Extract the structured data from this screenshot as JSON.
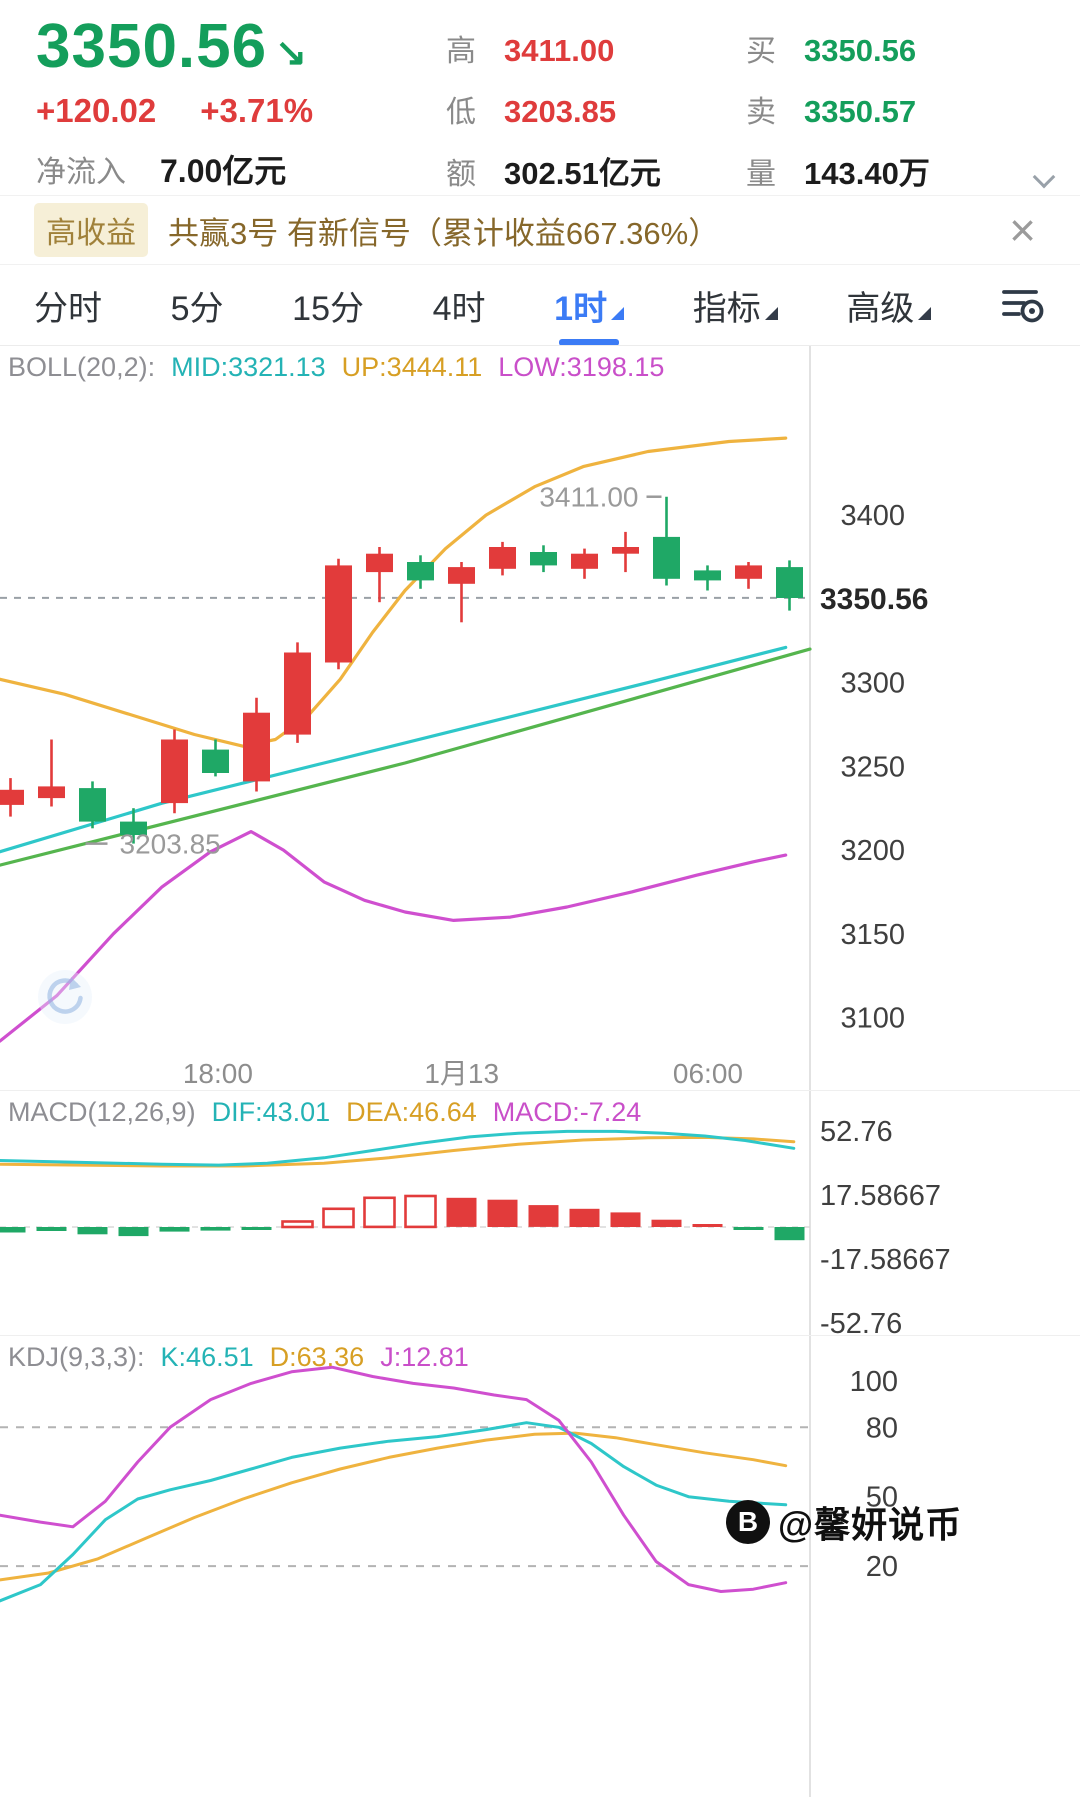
{
  "header": {
    "price": "3350.56",
    "price_arrow": "↘",
    "change": "+120.02",
    "change_pct": "+3.71%",
    "net_inflow_label": "净流入",
    "net_inflow_value": "7.00亿元",
    "stats": [
      {
        "label": "高",
        "value": "3411.00"
      },
      {
        "label": "低",
        "value": "3203.85"
      },
      {
        "label": "额",
        "value": "302.51亿元"
      },
      {
        "label": "买",
        "value": "3350.56"
      },
      {
        "label": "卖",
        "value": "3350.57"
      },
      {
        "label": "量",
        "value": "143.40万"
      }
    ]
  },
  "banner": {
    "badge": "高收益",
    "text": "共赢3号 有新信号（累计收益667.36%）",
    "close_icon": "×"
  },
  "tabs": {
    "items": [
      {
        "label": "分时"
      },
      {
        "label": "5分"
      },
      {
        "label": "15分"
      },
      {
        "label": "4时"
      },
      {
        "label": "1时",
        "active": true
      },
      {
        "label": "指标"
      },
      {
        "label": "高级"
      }
    ]
  },
  "watermark": {
    "logo": "B",
    "text": "@馨妍说币"
  },
  "chart_data": {
    "colors": {
      "up": "#e23b3b",
      "down": "#1fa866",
      "accent_blue": "#3b7bf5",
      "price_green": "#149e5b",
      "change_red": "#df3c3c"
    },
    "main": {
      "type": "candlestick",
      "label": {
        "name": "BOLL(20,2):",
        "mid": "MID:3321.13",
        "up": "UP:3444.11",
        "low": "LOW:3198.15"
      },
      "ylim": [
        3083,
        3501
      ],
      "yticks": [
        3400,
        3300,
        3250,
        3200,
        3150,
        3100
      ],
      "price_line": 3350.56,
      "price_label": "3350.56",
      "high_annotation": {
        "candle": 16,
        "price": 3411,
        "text": "3411.00"
      },
      "low_annotation": {
        "candle": 3,
        "price": 3203.85,
        "text": "3203.85"
      },
      "xticks": [
        {
          "label": "18:00",
          "nx": 0.269
        },
        {
          "label": "1月13",
          "nx": 0.57
        },
        {
          "label": "06:00",
          "nx": 0.874
        }
      ],
      "candles": [
        [
          3227,
          3243,
          3220,
          3236
        ],
        [
          3231,
          3266,
          3226,
          3238
        ],
        [
          3237,
          3241,
          3213,
          3217
        ],
        [
          3217,
          3225,
          3203.85,
          3209
        ],
        [
          3228,
          3272,
          3222,
          3266
        ],
        [
          3260,
          3266,
          3244,
          3246
        ],
        [
          3241,
          3291,
          3235,
          3282
        ],
        [
          3269,
          3324,
          3264,
          3318
        ],
        [
          3312,
          3374,
          3308,
          3370
        ],
        [
          3366,
          3381,
          3348,
          3377
        ],
        [
          3372,
          3376,
          3356,
          3361
        ],
        [
          3359,
          3372,
          3336,
          3369
        ],
        [
          3368,
          3384,
          3364,
          3381
        ],
        [
          3378,
          3382,
          3366,
          3370
        ],
        [
          3368,
          3380,
          3362,
          3377
        ],
        [
          3377,
          3390,
          3366,
          3381
        ],
        [
          3387,
          3411,
          3358,
          3362
        ],
        [
          3367,
          3370,
          3355,
          3361
        ],
        [
          3362,
          3372,
          3356,
          3370
        ],
        [
          3369,
          3373,
          3343,
          3350.56
        ]
      ],
      "lines": [
        {
          "name": "boll-up",
          "color": "#efb33f",
          "points": [
            [
              0,
              3302
            ],
            [
              0.08,
              3293
            ],
            [
              0.16,
              3281
            ],
            [
              0.24,
              3269
            ],
            [
              0.3,
              3262
            ],
            [
              0.34,
              3266
            ],
            [
              0.38,
              3280
            ],
            [
              0.42,
              3302
            ],
            [
              0.46,
              3330
            ],
            [
              0.5,
              3355
            ],
            [
              0.55,
              3380
            ],
            [
              0.6,
              3400
            ],
            [
              0.66,
              3417
            ],
            [
              0.72,
              3429
            ],
            [
              0.8,
              3438
            ],
            [
              0.9,
              3444
            ],
            [
              0.97,
              3446
            ]
          ]
        },
        {
          "name": "boll-mid",
          "color": "#2ec7c9",
          "points": [
            [
              0,
              3199
            ],
            [
              0.2,
              3228
            ],
            [
              0.4,
              3252
            ],
            [
              0.6,
              3276
            ],
            [
              0.8,
              3300
            ],
            [
              0.97,
              3321
            ]
          ]
        },
        {
          "name": "ma-line",
          "color": "#55b54e",
          "points": [
            [
              0,
              3191
            ],
            [
              0.5,
              3252
            ],
            [
              1,
              3320
            ]
          ]
        },
        {
          "name": "boll-low",
          "color": "#cf4fcf",
          "points": [
            [
              0,
              3086
            ],
            [
              0.07,
              3113
            ],
            [
              0.14,
              3150
            ],
            [
              0.2,
              3178
            ],
            [
              0.26,
              3199
            ],
            [
              0.31,
              3211
            ],
            [
              0.35,
              3200
            ],
            [
              0.4,
              3181
            ],
            [
              0.45,
              3170
            ],
            [
              0.5,
              3163
            ],
            [
              0.56,
              3158
            ],
            [
              0.63,
              3160
            ],
            [
              0.7,
              3166
            ],
            [
              0.78,
              3175
            ],
            [
              0.86,
              3185
            ],
            [
              0.93,
              3193
            ],
            [
              0.97,
              3197
            ]
          ]
        }
      ]
    },
    "macd": {
      "type": "bar",
      "label": {
        "name": "MACD(12,26,9)",
        "dif": "DIF:43.01",
        "dea": "DEA:46.64",
        "macd": "MACD:-7.24"
      },
      "ylim": [
        -59.9,
        74.7
      ],
      "yticks": [
        {
          "v": 52.76,
          "label": "52.76"
        },
        {
          "v": 17.58667,
          "label": "17.58667"
        },
        {
          "v": -17.58667,
          "label": "-17.58667"
        },
        {
          "v": -52.76,
          "label": "-52.76"
        }
      ],
      "bars": [
        {
          "v": -3
        },
        {
          "v": -2.2
        },
        {
          "v": -4
        },
        {
          "v": -5
        },
        {
          "v": -2.5
        },
        {
          "v": -2
        },
        {
          "v": -1.5
        },
        {
          "v": 3,
          "hollow": true
        },
        {
          "v": 10,
          "hollow": true
        },
        {
          "v": 16,
          "hollow": true
        },
        {
          "v": 17,
          "hollow": true
        },
        {
          "v": 16
        },
        {
          "v": 15
        },
        {
          "v": 12
        },
        {
          "v": 10
        },
        {
          "v": 8
        },
        {
          "v": 4
        },
        {
          "v": 1
        },
        {
          "v": -1
        },
        {
          "v": -7.24
        }
      ],
      "lines": [
        {
          "name": "dea",
          "color": "#efb33f",
          "points": [
            [
              0,
              34.5
            ],
            [
              0.1,
              34
            ],
            [
              0.2,
              33.5
            ],
            [
              0.3,
              33.5
            ],
            [
              0.4,
              35
            ],
            [
              0.48,
              38
            ],
            [
              0.56,
              42
            ],
            [
              0.64,
              45.5
            ],
            [
              0.72,
              47.8
            ],
            [
              0.8,
              49
            ],
            [
              0.87,
              49.2
            ],
            [
              0.93,
              48.4
            ],
            [
              0.98,
              46.8
            ]
          ]
        },
        {
          "name": "dif",
          "color": "#2ec7c9",
          "points": [
            [
              0,
              36.5
            ],
            [
              0.1,
              35.5
            ],
            [
              0.2,
              34.5
            ],
            [
              0.27,
              34
            ],
            [
              0.33,
              35
            ],
            [
              0.4,
              38
            ],
            [
              0.46,
              42
            ],
            [
              0.52,
              46
            ],
            [
              0.58,
              49.5
            ],
            [
              0.64,
              51.5
            ],
            [
              0.7,
              52.5
            ],
            [
              0.76,
              52.5
            ],
            [
              0.82,
              51.5
            ],
            [
              0.87,
              50
            ],
            [
              0.92,
              47.5
            ],
            [
              0.98,
              43.2
            ]
          ]
        }
      ]
    },
    "kdj": {
      "type": "line",
      "label": {
        "name": "KDJ(9,3,3):",
        "k": "K:46.51",
        "d": "D:63.36",
        "j": "J:12.81"
      },
      "ylim": [
        -80.3,
        119.5
      ],
      "yticks": [
        100,
        80,
        50,
        20
      ],
      "dashed_levels": [
        80,
        20
      ],
      "lines": [
        {
          "name": "d",
          "color": "#efb33f",
          "points": [
            [
              0,
              14
            ],
            [
              0.06,
              17
            ],
            [
              0.12,
              23
            ],
            [
              0.18,
              32
            ],
            [
              0.24,
              41
            ],
            [
              0.3,
              49
            ],
            [
              0.36,
              56
            ],
            [
              0.42,
              62
            ],
            [
              0.48,
              67
            ],
            [
              0.54,
              71
            ],
            [
              0.6,
              74.5
            ],
            [
              0.66,
              77
            ],
            [
              0.71,
              77.5
            ],
            [
              0.76,
              75.5
            ],
            [
              0.81,
              72.5
            ],
            [
              0.87,
              69
            ],
            [
              0.93,
              66
            ],
            [
              0.97,
              63.4
            ]
          ]
        },
        {
          "name": "k",
          "color": "#2ec7c9",
          "points": [
            [
              0,
              5
            ],
            [
              0.05,
              12
            ],
            [
              0.09,
              25
            ],
            [
              0.13,
              40
            ],
            [
              0.17,
              49
            ],
            [
              0.21,
              53
            ],
            [
              0.26,
              57
            ],
            [
              0.31,
              62
            ],
            [
              0.36,
              67
            ],
            [
              0.42,
              71
            ],
            [
              0.48,
              74
            ],
            [
              0.54,
              76
            ],
            [
              0.6,
              79
            ],
            [
              0.65,
              82
            ],
            [
              0.69,
              80
            ],
            [
              0.73,
              73
            ],
            [
              0.77,
              63
            ],
            [
              0.81,
              55
            ],
            [
              0.85,
              50
            ],
            [
              0.9,
              48
            ],
            [
              0.97,
              46.5
            ]
          ]
        },
        {
          "name": "j",
          "color": "#cf4fcf",
          "points": [
            [
              0,
              42
            ],
            [
              0.05,
              39
            ],
            [
              0.09,
              37
            ],
            [
              0.13,
              48
            ],
            [
              0.17,
              65
            ],
            [
              0.21,
              80
            ],
            [
              0.26,
              92
            ],
            [
              0.31,
              99
            ],
            [
              0.36,
              104
            ],
            [
              0.41,
              106
            ],
            [
              0.46,
              102
            ],
            [
              0.51,
              99
            ],
            [
              0.56,
              97
            ],
            [
              0.61,
              94
            ],
            [
              0.65,
              92
            ],
            [
              0.69,
              83
            ],
            [
              0.73,
              65
            ],
            [
              0.77,
              42
            ],
            [
              0.81,
              22
            ],
            [
              0.85,
              12
            ],
            [
              0.89,
              9
            ],
            [
              0.93,
              10
            ],
            [
              0.97,
              12.8
            ]
          ]
        }
      ]
    }
  }
}
